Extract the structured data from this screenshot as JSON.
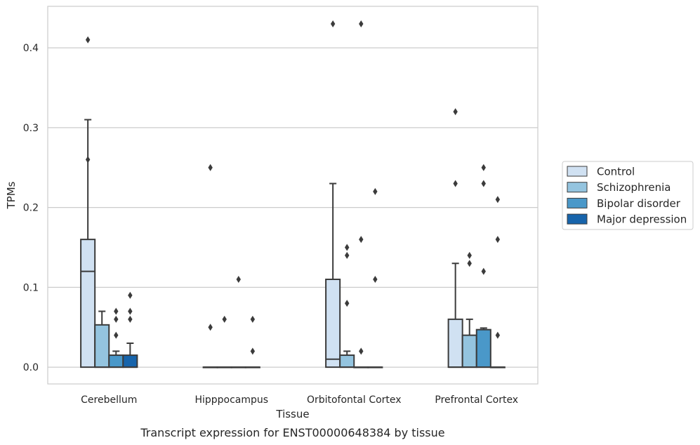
{
  "caption": "Transcript expression for ENST00000648384 by tissue",
  "chart_data": {
    "type": "box",
    "xlabel": "Tissue",
    "ylabel": "TPMs",
    "ylim": [
      -0.021,
      0.452
    ],
    "yticks": [
      0.0,
      0.1,
      0.2,
      0.3,
      0.4
    ],
    "ytick_labels": [
      "0.0",
      "0.1",
      "0.2",
      "0.3",
      "0.4"
    ],
    "grid": "horizontal",
    "legend_placement": "right",
    "categories": [
      "Cerebellum",
      "Hipppocampus",
      "Orbitofontal Cortex",
      "Prefrontal Cortex"
    ],
    "series": [
      {
        "name": "Control",
        "color": "#d0e1f2",
        "boxes": [
          {
            "q1": 0.0,
            "median": 0.12,
            "q3": 0.16,
            "whisker_low": 0.0,
            "whisker_high": 0.31,
            "outliers": [
              0.41,
              0.26
            ]
          },
          {
            "q1": 0.0,
            "median": 0.0,
            "q3": 0.0,
            "whisker_low": 0.0,
            "whisker_high": 0.0,
            "outliers": [
              0.25,
              0.05
            ]
          },
          {
            "q1": 0.0,
            "median": 0.01,
            "q3": 0.11,
            "whisker_low": 0.0,
            "whisker_high": 0.23,
            "outliers": [
              0.43
            ]
          },
          {
            "q1": 0.0,
            "median": 0.0,
            "q3": 0.06,
            "whisker_low": 0.0,
            "whisker_high": 0.13,
            "outliers": [
              0.32,
              0.23
            ]
          }
        ]
      },
      {
        "name": "Schizophrenia",
        "color": "#94c4df",
        "boxes": [
          {
            "q1": 0.0,
            "median": 0.0,
            "q3": 0.053,
            "whisker_low": 0.0,
            "whisker_high": 0.07,
            "outliers": []
          },
          {
            "q1": 0.0,
            "median": 0.0,
            "q3": 0.0,
            "whisker_low": 0.0,
            "whisker_high": 0.0,
            "outliers": [
              0.06
            ]
          },
          {
            "q1": 0.0,
            "median": 0.0,
            "q3": 0.015,
            "whisker_low": 0.0,
            "whisker_high": 0.02,
            "outliers": [
              0.15,
              0.14,
              0.08
            ]
          },
          {
            "q1": 0.0,
            "median": 0.0,
            "q3": 0.04,
            "whisker_low": 0.0,
            "whisker_high": 0.06,
            "outliers": [
              0.14,
              0.13
            ]
          }
        ]
      },
      {
        "name": "Bipolar disorder",
        "color": "#4a98c9",
        "boxes": [
          {
            "q1": 0.0,
            "median": 0.0,
            "q3": 0.015,
            "whisker_low": 0.0,
            "whisker_high": 0.02,
            "outliers": [
              0.07,
              0.06,
              0.04
            ]
          },
          {
            "q1": 0.0,
            "median": 0.0,
            "q3": 0.0,
            "whisker_low": 0.0,
            "whisker_high": 0.0,
            "outliers": [
              0.11
            ]
          },
          {
            "q1": 0.0,
            "median": 0.0,
            "q3": 0.0,
            "whisker_low": 0.0,
            "whisker_high": 0.0,
            "outliers": [
              0.43,
              0.16,
              0.02
            ]
          },
          {
            "q1": 0.0,
            "median": 0.0,
            "q3": 0.047,
            "whisker_low": 0.0,
            "whisker_high": 0.049,
            "outliers": [
              0.25,
              0.23,
              0.12
            ]
          }
        ]
      },
      {
        "name": "Major depression",
        "color": "#1764ab",
        "boxes": [
          {
            "q1": 0.0,
            "median": 0.0,
            "q3": 0.015,
            "whisker_low": 0.0,
            "whisker_high": 0.03,
            "outliers": [
              0.09,
              0.07,
              0.06
            ]
          },
          {
            "q1": 0.0,
            "median": 0.0,
            "q3": 0.0,
            "whisker_low": 0.0,
            "whisker_high": 0.0,
            "outliers": [
              0.06,
              0.02
            ]
          },
          {
            "q1": 0.0,
            "median": 0.0,
            "q3": 0.0,
            "whisker_low": 0.0,
            "whisker_high": 0.0,
            "outliers": [
              0.22,
              0.11
            ]
          },
          {
            "q1": 0.0,
            "median": 0.0,
            "q3": 0.0,
            "whisker_low": 0.0,
            "whisker_high": 0.0,
            "outliers": [
              0.21,
              0.16,
              0.04
            ]
          }
        ]
      }
    ]
  }
}
